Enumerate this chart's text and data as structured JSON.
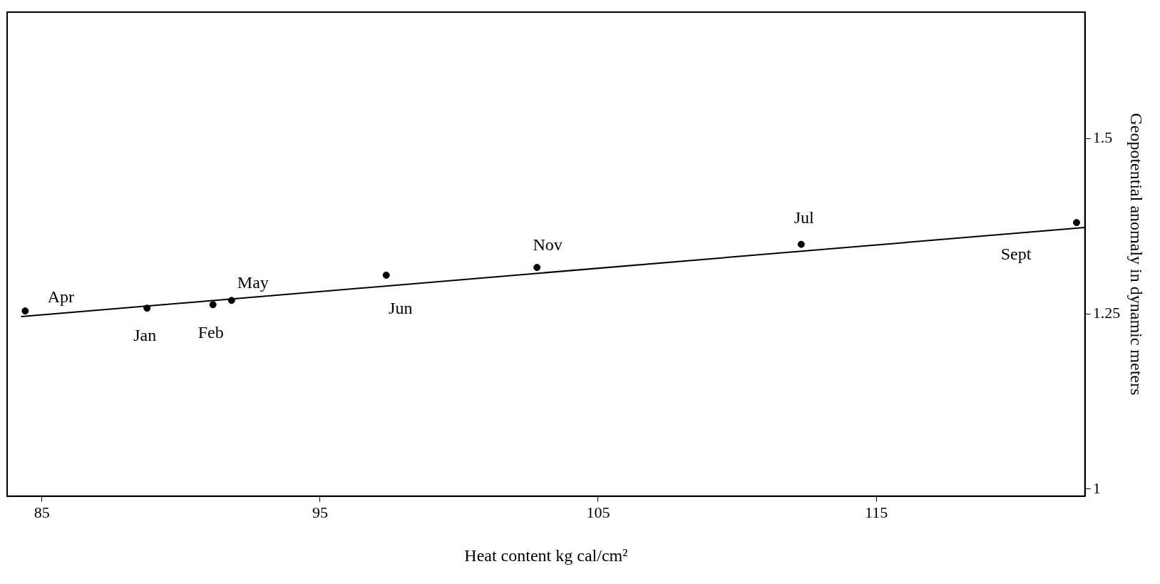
{
  "chart_data": {
    "type": "scatter",
    "xlabel": "Heat content kg cal/cm²",
    "ylabel": "Geopotential anomaly in dynamic meters",
    "xlim": [
      83.75,
      122.5
    ],
    "xticks": [
      85,
      95,
      105,
      115
    ],
    "ylim": [
      0.99,
      1.68
    ],
    "yticks": [
      1.0,
      1.25,
      1.5
    ],
    "grid": false,
    "legend": false,
    "series": [
      {
        "color": "#000000",
        "marker": "circle",
        "x": [
          84.4,
          88.78,
          91.15,
          91.82,
          97.38,
          102.8,
          112.3,
          122.2
        ],
        "values": [
          1.254,
          1.258,
          1.263,
          1.269,
          1.305,
          1.316,
          1.349,
          1.38
        ]
      },
      {
        "type": "line",
        "color": "#000000",
        "x": [
          84.25,
          122.5
        ],
        "values": [
          1.246,
          1.373
        ],
        "line_style": "solid"
      }
    ],
    "annotations": [
      {
        "text": "Apr",
        "x": 84.4,
        "y": 1.254
      },
      {
        "text": "Jan",
        "x": 88.78,
        "y": 1.258
      },
      {
        "text": "Feb",
        "x": 91.15,
        "y": 1.263
      },
      {
        "text": "May",
        "x": 91.82,
        "y": 1.269
      },
      {
        "text": "Jun",
        "x": 97.38,
        "y": 1.305
      },
      {
        "text": "Nov",
        "x": 102.8,
        "y": 1.316
      },
      {
        "text": "Jul",
        "x": 112.3,
        "y": 1.349
      },
      {
        "text": "Sept",
        "x": 122.2,
        "y": 1.38
      }
    ]
  }
}
